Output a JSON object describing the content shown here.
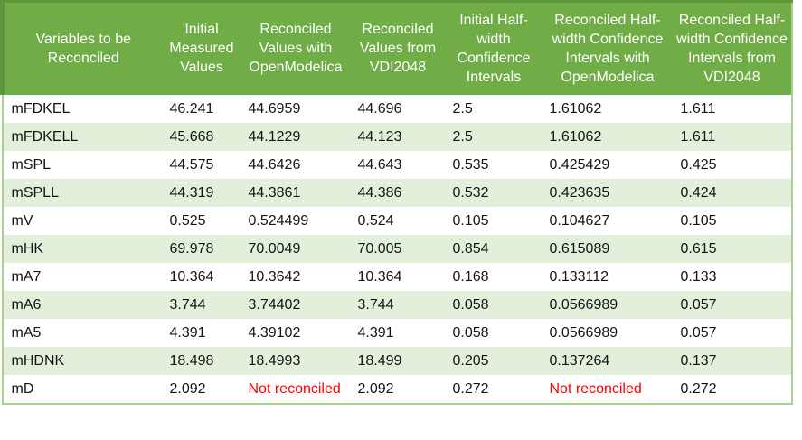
{
  "table": {
    "not_reconciled_marker": "Not reconciled",
    "columns": [
      {
        "label": "Variables to be Reconciled"
      },
      {
        "label": "Initial Measured Values"
      },
      {
        "label": "Reconciled Values with OpenModelica"
      },
      {
        "label": "Reconciled Values from VDI2048"
      },
      {
        "label": "Initial Half-width Confidence Intervals"
      },
      {
        "label": "Reconciled Half-width Confidence Intervals with OpenModelica"
      },
      {
        "label": "Reconciled Half-width Confidence Intervals from VDI2048"
      }
    ],
    "rows": [
      {
        "variable": "mFDKEL",
        "values": [
          "46.241",
          "44.6959",
          "44.696",
          "2.5",
          "1.61062",
          "1.611"
        ]
      },
      {
        "variable": "mFDKELL",
        "values": [
          "45.668",
          "44.1229",
          "44.123",
          "2.5",
          "1.61062",
          "1.611"
        ]
      },
      {
        "variable": "mSPL",
        "values": [
          "44.575",
          "44.6426",
          "44.643",
          "0.535",
          "0.425429",
          "0.425"
        ]
      },
      {
        "variable": "mSPLL",
        "values": [
          "44.319",
          "44.3861",
          "44.386",
          "0.532",
          "0.423635",
          "0.424"
        ]
      },
      {
        "variable": "mV",
        "values": [
          "0.525",
          "0.524499",
          "0.524",
          "0.105",
          "0.104627",
          "0.105"
        ]
      },
      {
        "variable": "mHK",
        "values": [
          "69.978",
          "70.0049",
          "70.005",
          "0.854",
          "0.615089",
          "0.615"
        ]
      },
      {
        "variable": "mA7",
        "values": [
          "10.364",
          "10.3642",
          "10.364",
          "0.168",
          "0.133112",
          "0.133"
        ]
      },
      {
        "variable": "mA6",
        "values": [
          "3.744",
          "3.74402",
          "3.744",
          "0.058",
          "0.0566989",
          "0.057"
        ]
      },
      {
        "variable": "mA5",
        "values": [
          "4.391",
          "4.39102",
          "4.391",
          "0.058",
          "0.0566989",
          "0.057"
        ]
      },
      {
        "variable": "mHDNK",
        "values": [
          "18.498",
          "18.4993",
          "18.499",
          "0.205",
          "0.137264",
          "0.137"
        ]
      },
      {
        "variable": "mD",
        "values": [
          "2.092",
          "Not reconciled",
          "2.092",
          "0.272",
          "Not reconciled",
          "0.272"
        ]
      }
    ]
  },
  "colors": {
    "header_bg": "#70ad47",
    "header_edge": "#61953d",
    "band_bg": "#e2efda",
    "table_border": "#a9d08e",
    "header_text": "#ffffff",
    "body_text": "#141414",
    "error_text": "#ff0000",
    "page_bg": "#ffffff"
  }
}
